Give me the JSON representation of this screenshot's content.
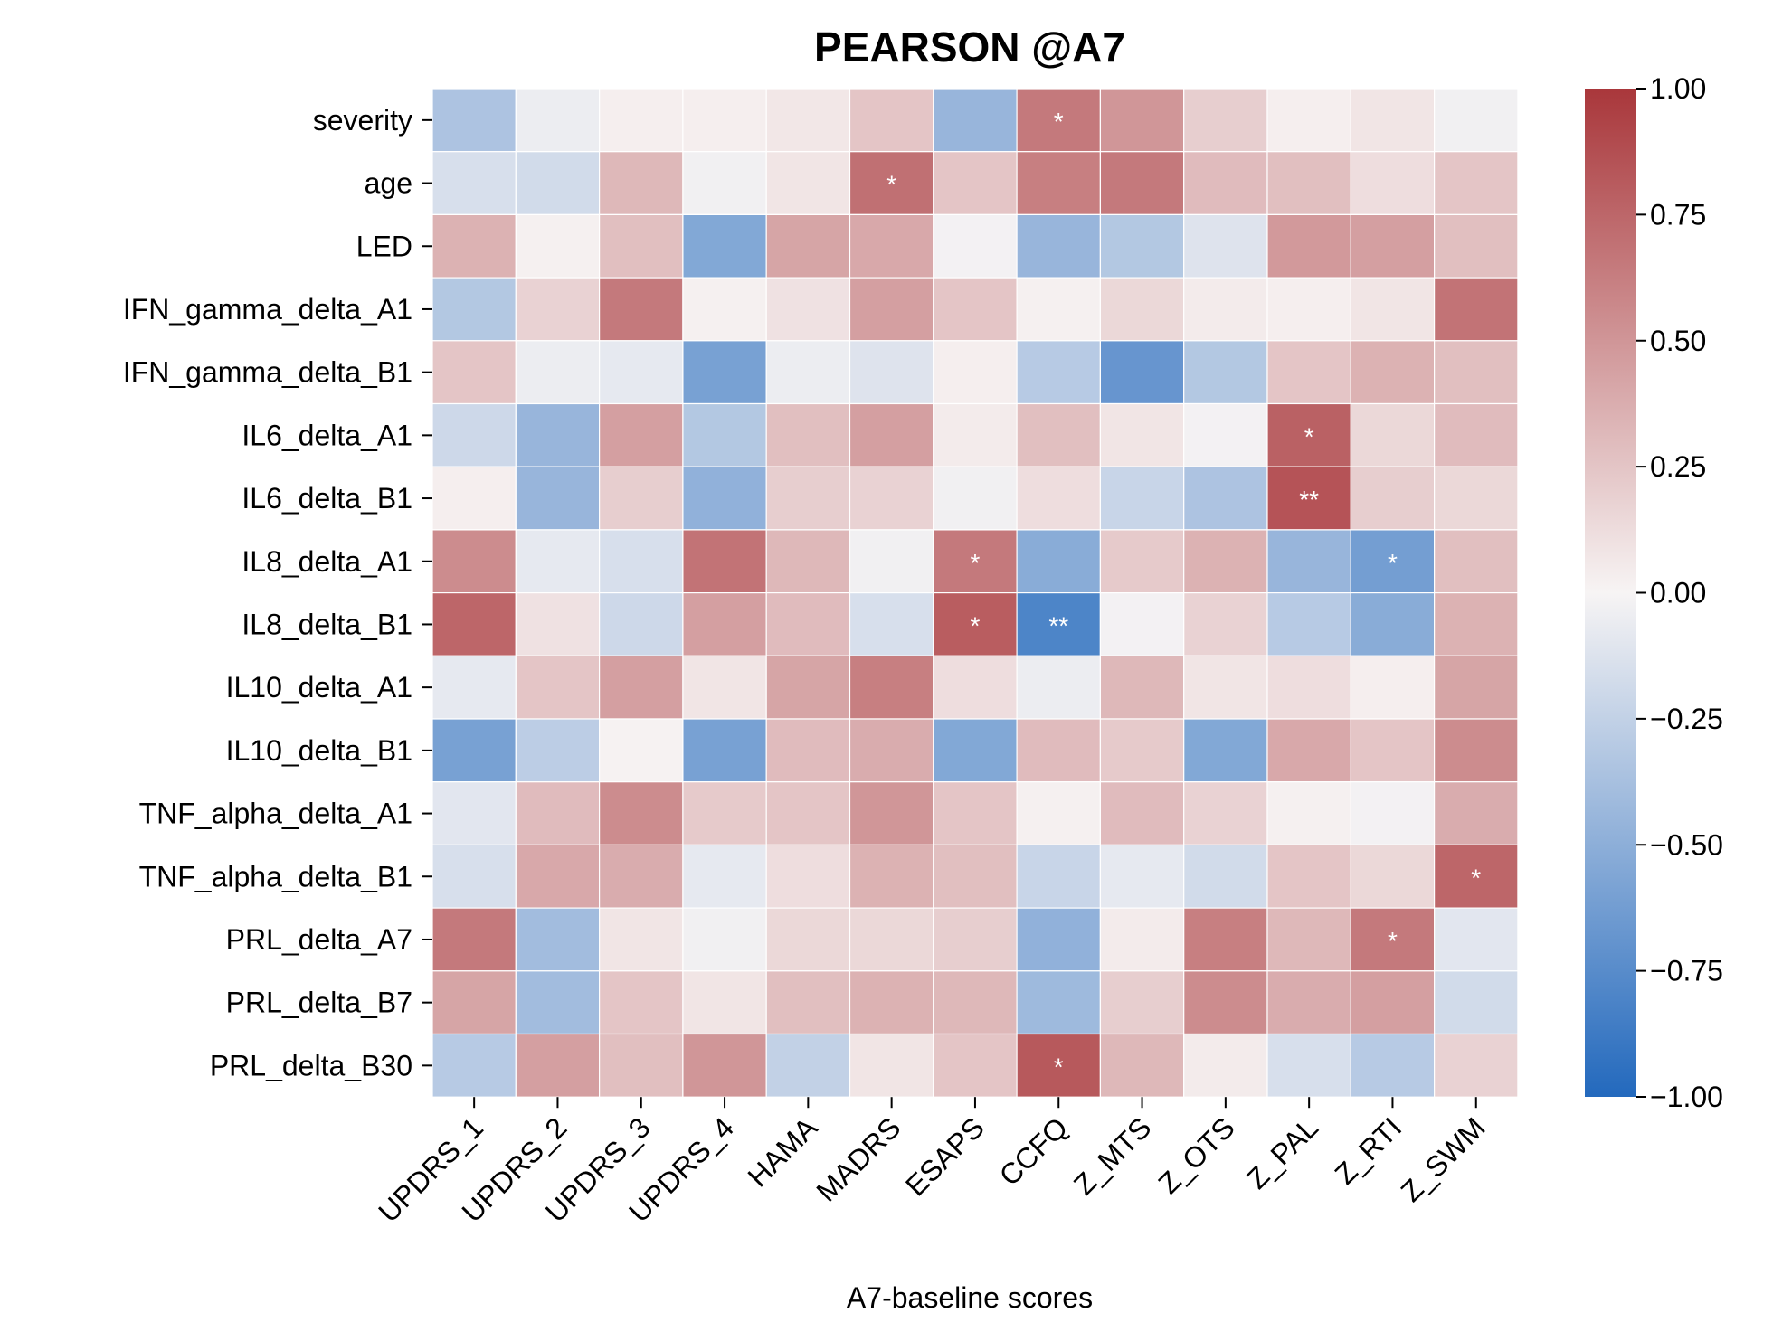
{
  "chart_data": {
    "type": "heatmap",
    "title": "PEARSON @A7",
    "xlabel": "A7-baseline scores",
    "ylabel": "",
    "x_categories": [
      "UPDRS_1",
      "UPDRS_2",
      "UPDRS_3",
      "UPDRS_4",
      "HAMA",
      "MADRS",
      "ESAPS",
      "CCFQ",
      "Z_MTS",
      "Z_OTS",
      "Z_PAL",
      "Z_RTI",
      "Z_SWM"
    ],
    "y_categories": [
      "severity",
      "age",
      "LED",
      "IFN_gamma_delta_A1",
      "IFN_gamma_delta_B1",
      "IL6_delta_A1",
      "IL6_delta_B1",
      "IL8_delta_A1",
      "IL8_delta_B1",
      "IL10_delta_A1",
      "IL10_delta_B1",
      "TNF_alpha_delta_A1",
      "TNF_alpha_delta_B1",
      "PRL_delta_A7",
      "PRL_delta_B7",
      "PRL_delta_B30"
    ],
    "values": [
      [
        -0.35,
        -0.05,
        0.03,
        0.03,
        0.07,
        0.25,
        -0.45,
        0.65,
        0.5,
        0.2,
        0.03,
        0.08,
        -0.03
      ],
      [
        -0.15,
        -0.18,
        0.32,
        -0.03,
        0.08,
        0.7,
        0.25,
        0.62,
        0.65,
        0.3,
        0.28,
        0.12,
        0.25
      ],
      [
        0.35,
        0.02,
        0.28,
        -0.55,
        0.42,
        0.4,
        -0.02,
        -0.45,
        -0.32,
        -0.12,
        0.48,
        0.45,
        0.28
      ],
      [
        -0.32,
        0.18,
        0.65,
        0.02,
        0.1,
        0.45,
        0.25,
        0.02,
        0.15,
        0.05,
        0.03,
        0.08,
        0.68
      ],
      [
        0.25,
        -0.05,
        -0.08,
        -0.6,
        -0.05,
        -0.12,
        0.03,
        -0.3,
        -0.68,
        -0.32,
        0.25,
        0.35,
        0.28
      ],
      [
        -0.2,
        -0.45,
        0.45,
        -0.32,
        0.28,
        0.45,
        0.05,
        0.28,
        0.08,
        -0.02,
        0.78,
        0.15,
        0.3
      ],
      [
        0.03,
        -0.45,
        0.2,
        -0.48,
        0.2,
        0.18,
        -0.03,
        0.12,
        -0.22,
        -0.35,
        0.85,
        0.2,
        0.15
      ],
      [
        0.55,
        -0.08,
        -0.15,
        0.68,
        0.32,
        -0.03,
        0.65,
        -0.52,
        0.22,
        0.35,
        -0.45,
        -0.62,
        0.28
      ],
      [
        0.75,
        0.1,
        -0.2,
        0.45,
        0.3,
        -0.15,
        0.8,
        -0.8,
        -0.02,
        0.18,
        -0.3,
        -0.52,
        0.35
      ],
      [
        -0.08,
        0.25,
        0.45,
        0.08,
        0.42,
        0.62,
        0.12,
        -0.05,
        0.32,
        0.08,
        0.12,
        0.03,
        0.42
      ],
      [
        -0.6,
        -0.28,
        0.01,
        -0.6,
        0.3,
        0.38,
        -0.55,
        0.3,
        0.22,
        -0.55,
        0.4,
        0.25,
        0.55
      ],
      [
        -0.1,
        0.3,
        0.55,
        0.22,
        0.25,
        0.5,
        0.25,
        0.02,
        0.3,
        0.18,
        0.02,
        -0.02,
        0.38
      ],
      [
        -0.15,
        0.4,
        0.38,
        -0.08,
        0.12,
        0.35,
        0.28,
        -0.22,
        -0.08,
        -0.18,
        0.25,
        0.15,
        0.75
      ],
      [
        0.65,
        -0.4,
        0.08,
        -0.03,
        0.15,
        0.15,
        0.2,
        -0.48,
        0.05,
        0.62,
        0.32,
        0.65,
        -0.1
      ],
      [
        0.42,
        -0.4,
        0.25,
        0.08,
        0.28,
        0.35,
        0.32,
        -0.42,
        0.2,
        0.55,
        0.38,
        0.45,
        -0.18
      ],
      [
        -0.3,
        0.45,
        0.28,
        0.5,
        -0.25,
        0.08,
        0.25,
        0.82,
        0.32,
        0.05,
        -0.15,
        -0.3,
        0.18
      ]
    ],
    "annotations": [
      {
        "row": 0,
        "col": 7,
        "text": "*"
      },
      {
        "row": 1,
        "col": 5,
        "text": "*"
      },
      {
        "row": 5,
        "col": 10,
        "text": "*"
      },
      {
        "row": 6,
        "col": 10,
        "text": "**"
      },
      {
        "row": 7,
        "col": 6,
        "text": "*"
      },
      {
        "row": 7,
        "col": 11,
        "text": "*"
      },
      {
        "row": 8,
        "col": 6,
        "text": "*"
      },
      {
        "row": 8,
        "col": 7,
        "text": "**"
      },
      {
        "row": 12,
        "col": 12,
        "text": "*"
      },
      {
        "row": 13,
        "col": 11,
        "text": "*"
      },
      {
        "row": 15,
        "col": 7,
        "text": "*"
      }
    ],
    "colorbar": {
      "vmin": -1.0,
      "vmax": 1.0,
      "ticks": [
        "1.00",
        "0.75",
        "0.50",
        "0.25",
        "0.00",
        "−0.25",
        "−0.50",
        "−0.75",
        "−1.00"
      ],
      "tick_values": [
        1.0,
        0.75,
        0.5,
        0.25,
        0.0,
        -0.25,
        -0.5,
        -0.75,
        -1.0
      ],
      "colormap": "vlag",
      "colors": {
        "low": "#2369bd",
        "mid": "#f7f4f4",
        "high": "#a9373b"
      }
    },
    "grid": true
  }
}
